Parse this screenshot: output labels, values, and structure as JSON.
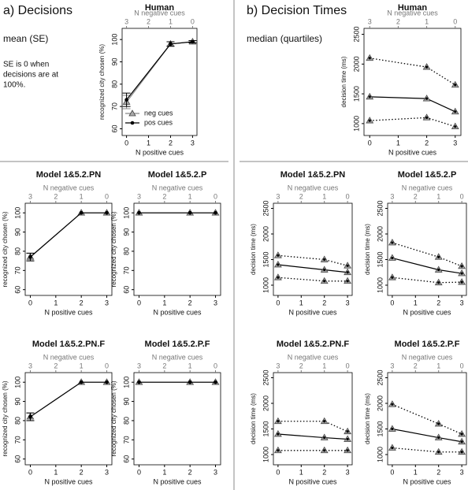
{
  "panels": [
    {
      "label": "a) Decisions",
      "note": "mean (SE)",
      "caption": [
        "SE is 0 when",
        "decisions are at",
        "100%."
      ]
    },
    {
      "label": "b) Decision Times",
      "note": "median (quartiles)"
    }
  ],
  "chart_data": [
    {
      "type": "line",
      "title": "Human",
      "xlabel": "N positive cues",
      "x2label": "N negative cues",
      "ylabel": "recognized city chosen (%)",
      "x": [
        0,
        2,
        3
      ],
      "xlim": [
        -0.2,
        3.2
      ],
      "xticks": [
        0,
        1,
        2,
        3
      ],
      "x2lim": [
        3.2,
        -0.2
      ],
      "x2ticks": [
        3,
        2,
        1,
        0
      ],
      "ylim": [
        57,
        105
      ],
      "yticks": [
        60,
        70,
        80,
        90,
        100
      ],
      "legend": "bottom-left",
      "series": [
        {
          "name": "neg cues",
          "color": "#888888",
          "marker": "triangle",
          "line": "solid",
          "values": [
            72,
            98,
            99
          ],
          "errors": [
            3,
            1,
            0.5
          ]
        },
        {
          "name": "pos cues",
          "color": "#000000",
          "marker": "dot",
          "line": "solid",
          "values": [
            73,
            98,
            99
          ],
          "errors": [
            3,
            1,
            0.5
          ]
        }
      ]
    },
    {
      "type": "line",
      "title": "Human",
      "xlabel": "N positive cues",
      "x2label": "N negative cues",
      "ylabel": "decision time (ms)",
      "x": [
        0,
        2,
        3
      ],
      "xlim": [
        -0.2,
        3.2
      ],
      "xticks": [
        0,
        1,
        2,
        3
      ],
      "x2lim": [
        3.2,
        -0.2
      ],
      "x2ticks": [
        3,
        2,
        1,
        0
      ],
      "ylim": [
        800,
        2600
      ],
      "yticks": [
        1000,
        1500,
        2000,
        2500
      ],
      "series": [
        {
          "color": "#000000",
          "marker": "triangle-dot",
          "line": "dotted",
          "values": [
            2100,
            1950,
            1650
          ]
        },
        {
          "color": "#000000",
          "marker": "triangle-dot",
          "line": "solid",
          "values": [
            1450,
            1420,
            1200
          ]
        },
        {
          "color": "#000000",
          "marker": "triangle-dot",
          "line": "dotted",
          "values": [
            1050,
            1100,
            950
          ]
        }
      ]
    },
    {
      "type": "line",
      "title": "Model 1&5.2.PN",
      "xlabel": "N positive cues",
      "x2label": "N negative cues",
      "ylabel": "recognized city chosen (%)",
      "x": [
        0,
        2,
        3
      ],
      "xlim": [
        -0.2,
        3.2
      ],
      "xticks": [
        0,
        1,
        2,
        3
      ],
      "x2lim": [
        3.2,
        -0.2
      ],
      "x2ticks": [
        3,
        2,
        1,
        0
      ],
      "ylim": [
        57,
        105
      ],
      "yticks": [
        60,
        70,
        80,
        90,
        100
      ],
      "series": [
        {
          "color": "#888888",
          "marker": "triangle",
          "line": "solid",
          "values": [
            77,
            100,
            100
          ],
          "errors": [
            2,
            0,
            0
          ]
        },
        {
          "color": "#000000",
          "marker": "dot",
          "line": "solid",
          "values": [
            77,
            100,
            100
          ],
          "errors": [
            2,
            0,
            0
          ]
        }
      ]
    },
    {
      "type": "line",
      "title": "Model 1&5.2.P",
      "xlabel": "N positive cues",
      "x2label": "N negative cues",
      "ylabel": "recognized city chosen (%)",
      "x": [
        0,
        2,
        3
      ],
      "xlim": [
        -0.2,
        3.2
      ],
      "xticks": [
        0,
        1,
        2,
        3
      ],
      "x2lim": [
        3.2,
        -0.2
      ],
      "x2ticks": [
        3,
        2,
        1,
        0
      ],
      "ylim": [
        57,
        105
      ],
      "yticks": [
        60,
        70,
        80,
        90,
        100
      ],
      "series": [
        {
          "color": "#888888",
          "marker": "triangle",
          "line": "solid",
          "values": [
            100,
            100,
            100
          ]
        },
        {
          "color": "#000000",
          "marker": "dot",
          "line": "solid",
          "values": [
            100,
            100,
            100
          ]
        }
      ]
    },
    {
      "type": "line",
      "title": "Model 1&5.2.PN",
      "xlabel": "N positive cues",
      "x2label": "N negative cues",
      "ylabel": "decision time (ms)",
      "x": [
        0,
        2,
        3
      ],
      "xlim": [
        -0.2,
        3.2
      ],
      "xticks": [
        0,
        1,
        2,
        3
      ],
      "x2lim": [
        3.2,
        -0.2
      ],
      "x2ticks": [
        3,
        2,
        1,
        0
      ],
      "ylim": [
        800,
        2600
      ],
      "yticks": [
        1000,
        1500,
        2000,
        2500
      ],
      "series": [
        {
          "color": "#000000",
          "marker": "triangle-dot",
          "line": "dotted",
          "values": [
            1580,
            1500,
            1380
          ]
        },
        {
          "color": "#000000",
          "marker": "triangle-dot",
          "line": "solid",
          "values": [
            1400,
            1300,
            1250
          ]
        },
        {
          "color": "#000000",
          "marker": "triangle-dot",
          "line": "dotted",
          "values": [
            1150,
            1080,
            1080
          ]
        }
      ]
    },
    {
      "type": "line",
      "title": "Model 1&5.2.P",
      "xlabel": "N positive cues",
      "x2label": "N negative cues",
      "ylabel": "decision time (ms)",
      "x": [
        0,
        2,
        3
      ],
      "xlim": [
        -0.2,
        3.2
      ],
      "xticks": [
        0,
        1,
        2,
        3
      ],
      "x2lim": [
        3.2,
        -0.2
      ],
      "x2ticks": [
        3,
        2,
        1,
        0
      ],
      "ylim": [
        800,
        2600
      ],
      "yticks": [
        1000,
        1500,
        2000,
        2500
      ],
      "series": [
        {
          "color": "#000000",
          "marker": "triangle-dot",
          "line": "dotted",
          "values": [
            1830,
            1550,
            1370
          ]
        },
        {
          "color": "#000000",
          "marker": "triangle-dot",
          "line": "solid",
          "values": [
            1530,
            1300,
            1230
          ]
        },
        {
          "color": "#000000",
          "marker": "triangle-dot",
          "line": "dotted",
          "values": [
            1150,
            1050,
            1060
          ]
        }
      ]
    },
    {
      "type": "line",
      "title": "Model 1&5.2.PN.F",
      "xlabel": "N positive cues",
      "x2label": "N negative cues",
      "ylabel": "recognized city chosen (%)",
      "x": [
        0,
        2,
        3
      ],
      "xlim": [
        -0.2,
        3.2
      ],
      "xticks": [
        0,
        1,
        2,
        3
      ],
      "x2lim": [
        3.2,
        -0.2
      ],
      "x2ticks": [
        3,
        2,
        1,
        0
      ],
      "ylim": [
        57,
        105
      ],
      "yticks": [
        60,
        70,
        80,
        90,
        100
      ],
      "series": [
        {
          "color": "#888888",
          "marker": "triangle",
          "line": "solid",
          "values": [
            82,
            100,
            100
          ],
          "errors": [
            2,
            0,
            0
          ]
        },
        {
          "color": "#000000",
          "marker": "dot",
          "line": "solid",
          "values": [
            82,
            100,
            100
          ],
          "errors": [
            2,
            0,
            0
          ]
        }
      ]
    },
    {
      "type": "line",
      "title": "Model 1&5.2.P.F",
      "xlabel": "N positive cues",
      "x2label": "N negative cues",
      "ylabel": "recognized city chosen (%)",
      "x": [
        0,
        2,
        3
      ],
      "xlim": [
        -0.2,
        3.2
      ],
      "xticks": [
        0,
        1,
        2,
        3
      ],
      "x2lim": [
        3.2,
        -0.2
      ],
      "x2ticks": [
        3,
        2,
        1,
        0
      ],
      "ylim": [
        57,
        105
      ],
      "yticks": [
        60,
        70,
        80,
        90,
        100
      ],
      "series": [
        {
          "color": "#888888",
          "marker": "triangle",
          "line": "solid",
          "values": [
            100,
            100,
            100
          ]
        },
        {
          "color": "#000000",
          "marker": "dot",
          "line": "solid",
          "values": [
            100,
            100,
            100
          ]
        }
      ]
    },
    {
      "type": "line",
      "title": "Model 1&5.2.PN.F",
      "xlabel": "N positive cues",
      "x2label": "N negative cues",
      "ylabel": "decision time (ms)",
      "x": [
        0,
        2,
        3
      ],
      "xlim": [
        -0.2,
        3.2
      ],
      "xticks": [
        0,
        1,
        2,
        3
      ],
      "x2lim": [
        3.2,
        -0.2
      ],
      "x2ticks": [
        3,
        2,
        1,
        0
      ],
      "ylim": [
        800,
        2600
      ],
      "yticks": [
        1000,
        1500,
        2000,
        2500
      ],
      "series": [
        {
          "color": "#000000",
          "marker": "triangle-dot",
          "line": "dotted",
          "values": [
            1650,
            1650,
            1450
          ]
        },
        {
          "color": "#000000",
          "marker": "triangle-dot",
          "line": "solid",
          "values": [
            1400,
            1330,
            1300
          ]
        },
        {
          "color": "#000000",
          "marker": "triangle-dot",
          "line": "dotted",
          "values": [
            1080,
            1080,
            1080
          ]
        }
      ]
    },
    {
      "type": "line",
      "title": "Model 1&5.2.P.F",
      "xlabel": "N positive cues",
      "x2label": "N negative cues",
      "ylabel": "decision time (ms)",
      "x": [
        0,
        2,
        3
      ],
      "xlim": [
        -0.2,
        3.2
      ],
      "xticks": [
        0,
        1,
        2,
        3
      ],
      "x2lim": [
        3.2,
        -0.2
      ],
      "x2ticks": [
        3,
        2,
        1,
        0
      ],
      "ylim": [
        800,
        2600
      ],
      "yticks": [
        1000,
        1500,
        2000,
        2500
      ],
      "series": [
        {
          "color": "#000000",
          "marker": "triangle-dot",
          "line": "dotted",
          "values": [
            1980,
            1600,
            1400
          ]
        },
        {
          "color": "#000000",
          "marker": "triangle-dot",
          "line": "solid",
          "values": [
            1500,
            1330,
            1250
          ]
        },
        {
          "color": "#000000",
          "marker": "triangle-dot",
          "line": "dotted",
          "values": [
            1130,
            1050,
            1050
          ]
        }
      ]
    }
  ]
}
